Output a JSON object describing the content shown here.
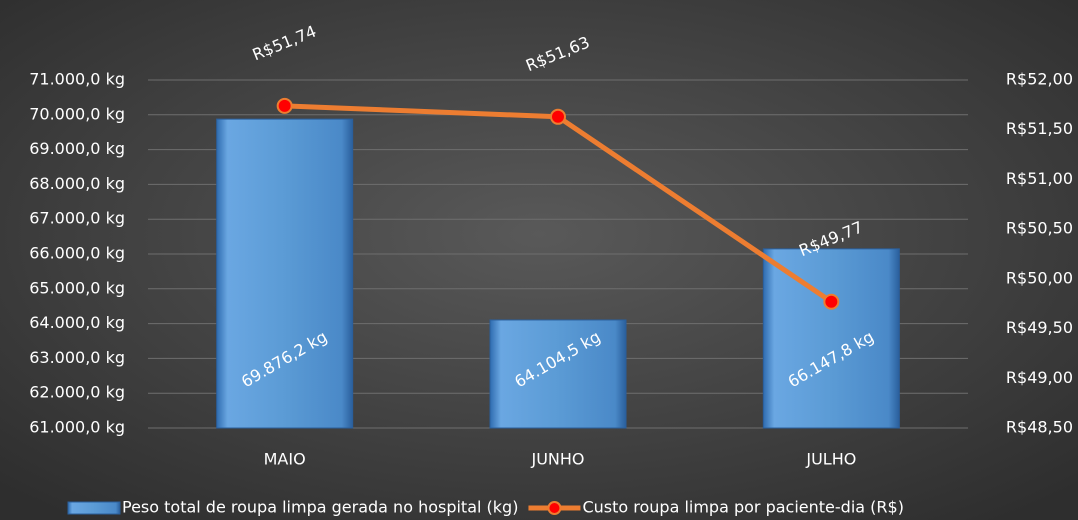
{
  "chart_data": {
    "type": "bar",
    "categories": [
      "MAIO",
      "JUNHO",
      "JULHO"
    ],
    "series": [
      {
        "name": "Peso total de roupa limpa gerada no hospital (kg)",
        "color": "#5b9bd5",
        "type": "bar",
        "values": [
          69876.2,
          64104.5,
          66147.8
        ],
        "value_labels": [
          "69.876,2 kg",
          "64.104,5 kg",
          "66.147,8 kg"
        ]
      },
      {
        "name": "Custo roupa limpa por paciente-dia (R$)",
        "color": "#ed7d31",
        "marker_color": "#ff0000",
        "type": "line",
        "axis": "y2",
        "values": [
          51.74,
          51.63,
          49.77
        ],
        "value_labels": [
          "R$51,74",
          "R$51,63",
          "R$49,77"
        ]
      }
    ],
    "ylim": [
      61000,
      71000
    ],
    "yticks": [
      {
        "value": 61000,
        "label": "61.000,0 kg"
      },
      {
        "value": 62000,
        "label": "62.000,0 kg"
      },
      {
        "value": 63000,
        "label": "63.000,0 kg"
      },
      {
        "value": 64000,
        "label": "64.000,0 kg"
      },
      {
        "value": 65000,
        "label": "65.000,0 kg"
      },
      {
        "value": 66000,
        "label": "66.000,0 kg"
      },
      {
        "value": 67000,
        "label": "67.000,0 kg"
      },
      {
        "value": 68000,
        "label": "68.000,0 kg"
      },
      {
        "value": 69000,
        "label": "69.000,0 kg"
      },
      {
        "value": 70000,
        "label": "70.000,0 kg"
      },
      {
        "value": 71000,
        "label": "71.000,0 kg"
      }
    ],
    "y2lim": [
      48.5,
      52
    ],
    "y2ticks": [
      {
        "value": 48.5,
        "label": "R$48,50"
      },
      {
        "value": 49,
        "label": "R$49,00"
      },
      {
        "value": 49.5,
        "label": "R$49,50"
      },
      {
        "value": 50,
        "label": "R$50,00"
      },
      {
        "value": 50.5,
        "label": "R$50,50"
      },
      {
        "value": 51,
        "label": "R$51,00"
      },
      {
        "value": 51.5,
        "label": "R$51,50"
      },
      {
        "value": 52,
        "label": "R$52,00"
      }
    ],
    "grid": true,
    "legend": "bottom"
  }
}
